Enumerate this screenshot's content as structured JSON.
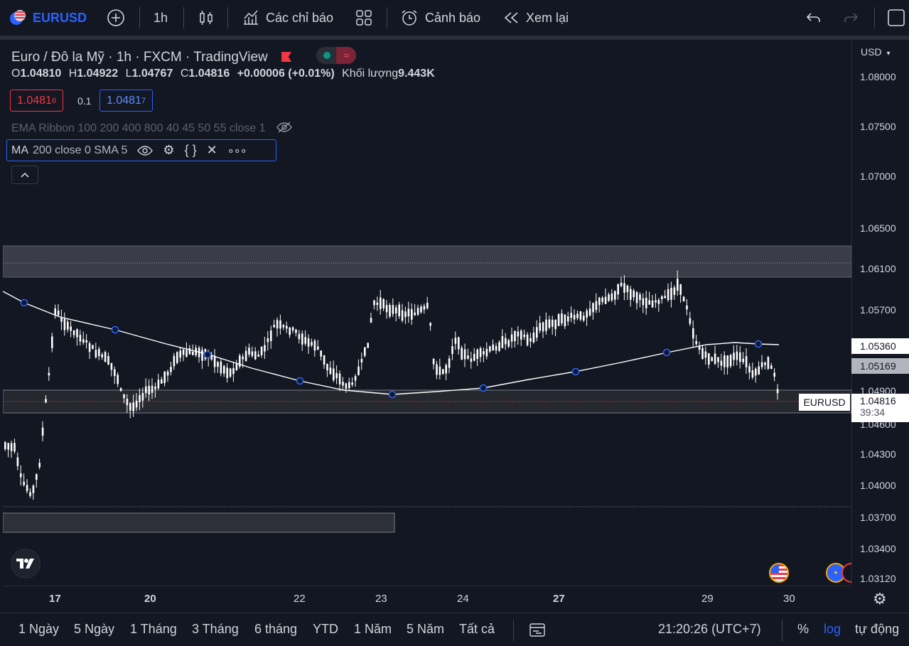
{
  "toolbar": {
    "symbol": "EURUSD",
    "interval": "1h",
    "indicators_label": "Các chỉ báo",
    "alert_label": "Cảnh báo",
    "replay_label": "Xem lại"
  },
  "legend": {
    "title": "Euro / Đô la Mỹ · 1h · FXCM · TradingView",
    "open_key": "O",
    "open": "1.04810",
    "high_key": "H",
    "high": "1.04922",
    "low_key": "L",
    "low": "1.04767",
    "close_key": "C",
    "close": "1.04816",
    "change": "+0.00006 (+0.01%)",
    "volume_key": "Khối lượng",
    "volume": "9.443K",
    "sell_price": "1.0481",
    "sell_sup": "6",
    "spread": "0.1",
    "buy_price": "1.0481",
    "buy_sup": "7"
  },
  "indicators": {
    "ema_ribbon": "EMA Ribbon 100 200 400 800 40 45 50 55 close 1",
    "ma_name": "MA",
    "ma_params": "200 close 0 SMA 5"
  },
  "price_axis": {
    "currency": "USD",
    "ticks": [
      "1.08000",
      "1.07500",
      "1.07000",
      "1.06500",
      "1.06100",
      "1.05700",
      "1.04900",
      "1.04600",
      "1.04300",
      "1.04000",
      "1.03700",
      "1.03400",
      "1.03120"
    ],
    "tag_ma": "1.05360",
    "tag_zone": "1.05169",
    "tag_symbol": "EURUSD",
    "tag_last": "1.04816",
    "countdown": "39:34"
  },
  "time_axis": {
    "ticks": [
      "17",
      "20",
      "22",
      "23",
      "24",
      "27",
      "29",
      "30"
    ]
  },
  "bottom": {
    "ranges": [
      "1 Ngày",
      "5 Ngày",
      "1 Tháng",
      "3 Tháng",
      "6 tháng",
      "YTD",
      "1 Năm",
      "5 Năm",
      "Tất cả"
    ],
    "clock": "21:20:26 (UTC+7)",
    "percent": "%",
    "log": "log",
    "auto": "tự động"
  },
  "colors": {
    "background": "#131722",
    "accent": "#2962ff",
    "down": "#f23645",
    "up": "#089981",
    "candle": "#ffffff"
  }
}
